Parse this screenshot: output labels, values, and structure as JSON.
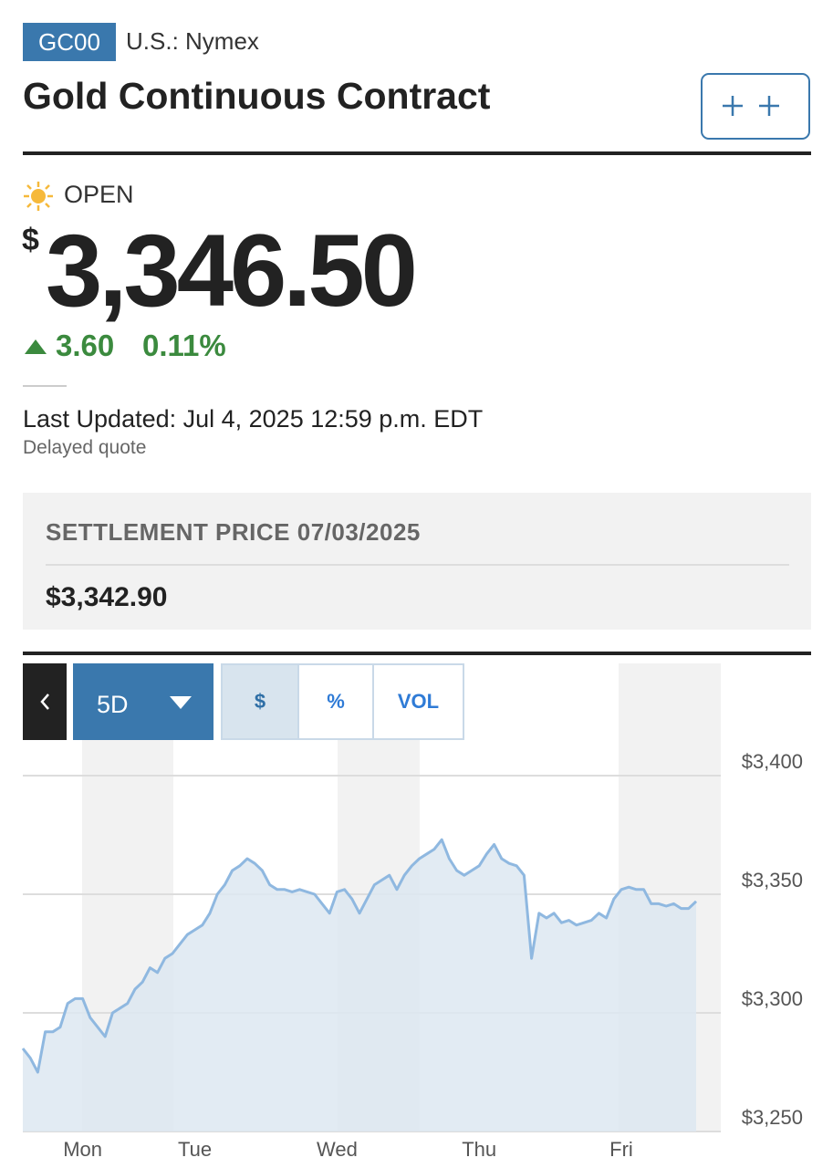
{
  "header": {
    "ticker": "GC00",
    "exchange": "U.S.: Nymex",
    "title": "Gold Continuous Contract"
  },
  "quote": {
    "status": "OPEN",
    "currency": "$",
    "price": "3,346.50",
    "change": "3.60",
    "change_percent": "0.11%",
    "last_updated": "Last Updated: Jul 4, 2025 12:59 p.m. EDT",
    "delay_note": "Delayed quote"
  },
  "settlement": {
    "label": "SETTLEMENT PRICE 07/03/2025",
    "price": "$3,342.90"
  },
  "controls": {
    "range": "5D",
    "modes": [
      "$",
      "%",
      "VOL"
    ]
  },
  "chart_data": {
    "type": "area",
    "color": "#8fb8e0",
    "fill": "#dde7f1",
    "grid": true,
    "categories": [
      null,
      null,
      null,
      null,
      null,
      null,
      null,
      null,
      "Mon",
      null,
      null,
      null,
      null,
      null,
      null,
      null,
      null,
      null,
      null,
      null,
      null,
      null,
      null,
      "Tue",
      null,
      null,
      null,
      null,
      null,
      null,
      null,
      null,
      null,
      null,
      null,
      null,
      null,
      null,
      null,
      null,
      null,
      null,
      "Wed",
      null,
      null,
      null,
      null,
      null,
      null,
      null,
      null,
      null,
      null,
      null,
      null,
      null,
      null,
      null,
      null,
      null,
      null,
      "Thu",
      null,
      null,
      null,
      null,
      null,
      null,
      null,
      null,
      null,
      null,
      null,
      null,
      null,
      null,
      null,
      null,
      null,
      null,
      "Fri",
      null,
      null,
      null,
      null,
      null,
      null,
      null,
      null,
      null,
      null
    ],
    "values": [
      3285,
      3281,
      3275,
      3292,
      3292,
      3294,
      3304,
      3306,
      3306,
      3298,
      3294,
      3290,
      3300,
      3302,
      3304,
      3310,
      3313,
      3319,
      3317,
      3323,
      3325,
      3329,
      3333,
      3335,
      3337,
      3342,
      3350,
      3354,
      3360,
      3362,
      3365,
      3363,
      3360,
      3354,
      3352,
      3352,
      3351,
      3352,
      3351,
      3350,
      3346,
      3342,
      3351,
      3352,
      3348,
      3342,
      3348,
      3354,
      3356,
      3358,
      3352,
      3358,
      3362,
      3365,
      3367,
      3369,
      3373,
      3365,
      3360,
      3358,
      3360,
      3362,
      3367,
      3371,
      3365,
      3363,
      3362,
      3358,
      3323,
      3342,
      3340,
      3342,
      3338,
      3339,
      3337,
      3338,
      3339,
      3342,
      3340,
      3348,
      3352,
      3353,
      3352,
      3352,
      3346,
      3346,
      3345,
      3346,
      3344,
      3344,
      3347
    ],
    "ylim": [
      3250,
      3400
    ],
    "yticks": [
      {
        "value": 3250,
        "label": "$3,250"
      },
      {
        "value": 3300,
        "label": "$3,300"
      },
      {
        "value": 3350,
        "label": "$3,350"
      },
      {
        "value": 3400,
        "label": "$3,400"
      }
    ]
  }
}
